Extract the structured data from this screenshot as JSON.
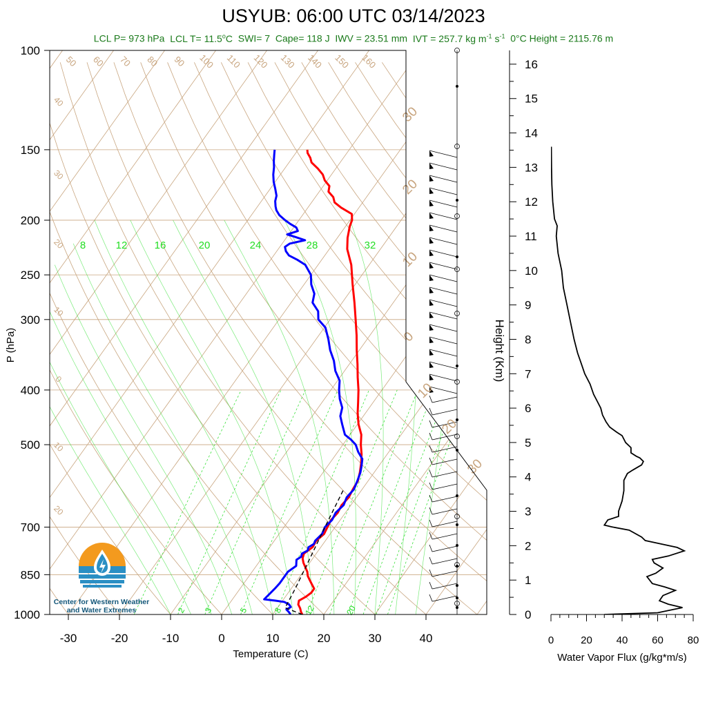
{
  "title": "USYUB: 06:00 UTC 03/14/2023",
  "subtitle": {
    "lcl_p": "LCL P= 973 hPa",
    "lcl_t_pre": "LCL T= 11.5",
    "lcl_t_unit": "C",
    "swi": "SWI= 7",
    "cape": "Cape= 118 J",
    "iwv": "IWV = 23.51 mm",
    "ivt_pre": "IVT = 257.7 kg m",
    "ivt_mid": " s",
    "zero_height": "0°C Height = 2115.76 m",
    "sup_deg": "o",
    "sup_m1": "-1",
    "sup_s1": "-1"
  },
  "logo": {
    "line1": "Center for Western Weather",
    "line2": "and Water Extremes"
  },
  "colors": {
    "temperature": "#ff0000",
    "dewpoint": "#0000ff",
    "isotherm": "#c8a57f",
    "mixing_ratio": "#22dd22",
    "subtitle": "#1a7a1a"
  },
  "chart_data": [
    {
      "type": "line",
      "subtype": "skew-t",
      "xlabel": "Temperature (C)",
      "ylabel": "P (hPa)",
      "x_ticks": [
        -30,
        -20,
        -10,
        0,
        10,
        20,
        30,
        40
      ],
      "y_ticks": [
        100,
        150,
        200,
        250,
        300,
        400,
        500,
        700,
        850,
        1000
      ],
      "ylim": [
        1000,
        100
      ],
      "y_scale": "log",
      "isotherm_labels": [
        -40,
        -30,
        -20,
        -10,
        0,
        10,
        20,
        30,
        40,
        50,
        60,
        70,
        80,
        90,
        100,
        110,
        120,
        130,
        140,
        150,
        160
      ],
      "dry_adiabat_labels_left": [
        40,
        30,
        20,
        10,
        0,
        10,
        20
      ],
      "dry_adiabat_labels_right": [
        30,
        20,
        10,
        0,
        10,
        20,
        30
      ],
      "mixing_ratio_labels_top": [
        8,
        12,
        16,
        20,
        24,
        28,
        32
      ],
      "mixing_ratio_labels_bottom": [
        2,
        3,
        5,
        8,
        12,
        20
      ],
      "series": [
        {
          "name": "temperature",
          "points": [
            [
              15.8,
              1000
            ],
            [
              15.2,
              990
            ],
            [
              14.5,
              975
            ],
            [
              13.6,
              960
            ],
            [
              13.2,
              945
            ],
            [
              14.0,
              930
            ],
            [
              14.5,
              915
            ],
            [
              14.5,
              900
            ],
            [
              13.5,
              885
            ],
            [
              12.5,
              870
            ],
            [
              11.5,
              855
            ],
            [
              10.8,
              840
            ],
            [
              9.8,
              825
            ],
            [
              8.8,
              810
            ],
            [
              8.0,
              795
            ],
            [
              7.6,
              780
            ],
            [
              8.4,
              760
            ],
            [
              8.2,
              740
            ],
            [
              8.8,
              720
            ],
            [
              8.5,
              700
            ],
            [
              8.2,
              680
            ],
            [
              8.5,
              660
            ],
            [
              8.2,
              640
            ],
            [
              8.5,
              620
            ],
            [
              8.2,
              600
            ],
            [
              8.0,
              580
            ],
            [
              7.2,
              560
            ],
            [
              6.2,
              540
            ],
            [
              5.0,
              520
            ],
            [
              3.5,
              500
            ],
            [
              2.2,
              480
            ],
            [
              0.2,
              460
            ],
            [
              -1.5,
              440
            ],
            [
              -3.0,
              420
            ],
            [
              -4.6,
              400
            ],
            [
              -6.5,
              380
            ],
            [
              -8.4,
              360
            ],
            [
              -10.5,
              340
            ],
            [
              -12.6,
              320
            ],
            [
              -15.0,
              300
            ],
            [
              -17.6,
              280
            ],
            [
              -20.5,
              260
            ],
            [
              -23.5,
              240
            ],
            [
              -26.5,
              225
            ],
            [
              -28.0,
              215
            ],
            [
              -29.2,
              205
            ],
            [
              -29.6,
              200
            ],
            [
              -30.5,
              195
            ],
            [
              -33.5,
              190
            ],
            [
              -35.5,
              186
            ],
            [
              -36.5,
              182
            ],
            [
              -38.2,
              178
            ],
            [
              -38.8,
              174
            ],
            [
              -40.5,
              170
            ],
            [
              -41.7,
              166
            ],
            [
              -43.5,
              162
            ],
            [
              -45.6,
              158
            ],
            [
              -46.5,
              155
            ],
            [
              -47.7,
              152
            ],
            [
              -48.2,
              150
            ]
          ]
        },
        {
          "name": "dewpoint",
          "points": [
            [
              13.5,
              1000
            ],
            [
              12.8,
              990
            ],
            [
              12.0,
              980
            ],
            [
              12.5,
              970
            ],
            [
              11.8,
              960
            ],
            [
              10.5,
              950
            ],
            [
              8.5,
              945
            ],
            [
              6.2,
              940
            ],
            [
              6.5,
              920
            ],
            [
              6.8,
              900
            ],
            [
              7.0,
              880
            ],
            [
              7.0,
              860
            ],
            [
              7.0,
              840
            ],
            [
              7.8,
              820
            ],
            [
              7.0,
              800
            ],
            [
              7.5,
              790
            ],
            [
              7.2,
              780
            ],
            [
              7.9,
              770
            ],
            [
              7.6,
              760
            ],
            [
              8.2,
              750
            ],
            [
              8.0,
              740
            ],
            [
              8.4,
              720
            ],
            [
              8.0,
              700
            ],
            [
              8.4,
              680
            ],
            [
              8.1,
              660
            ],
            [
              8.6,
              640
            ],
            [
              8.1,
              620
            ],
            [
              8.4,
              600
            ],
            [
              7.9,
              580
            ],
            [
              7.3,
              560
            ],
            [
              6.6,
              545
            ],
            [
              5.8,
              530
            ],
            [
              4.0,
              515
            ],
            [
              2.5,
              500
            ],
            [
              0.9,
              490
            ],
            [
              -1.0,
              480
            ],
            [
              -2.0,
              470
            ],
            [
              -3.0,
              460
            ],
            [
              -4.5,
              445
            ],
            [
              -5.3,
              430
            ],
            [
              -7.0,
              415
            ],
            [
              -8.4,
              400
            ],
            [
              -9.6,
              385
            ],
            [
              -11.8,
              370
            ],
            [
              -13.5,
              355
            ],
            [
              -15.7,
              340
            ],
            [
              -17.6,
              325
            ],
            [
              -19.8,
              310
            ],
            [
              -22.3,
              300
            ],
            [
              -23.5,
              290
            ],
            [
              -25.8,
              280
            ],
            [
              -26.7,
              270
            ],
            [
              -28.6,
              260
            ],
            [
              -30.0,
              250
            ],
            [
              -32.5,
              240
            ],
            [
              -34.8,
              235
            ],
            [
              -37.0,
              231
            ],
            [
              -38.2,
              227
            ],
            [
              -39.0,
              223
            ],
            [
              -38.5,
              220
            ],
            [
              -36.0,
              217
            ],
            [
              -38.5,
              214
            ],
            [
              -40.3,
              212
            ],
            [
              -38.7,
              209
            ],
            [
              -39.5,
              206
            ],
            [
              -41.2,
              203
            ],
            [
              -42.7,
              200
            ],
            [
              -44.5,
              196
            ],
            [
              -45.8,
              192
            ],
            [
              -46.5,
              189
            ],
            [
              -47.3,
              185
            ],
            [
              -47.8,
              181
            ],
            [
              -49.0,
              176
            ],
            [
              -50.3,
              171
            ],
            [
              -51.4,
              166
            ],
            [
              -52.3,
              161
            ],
            [
              -53.2,
              157
            ],
            [
              -54.0,
              153
            ],
            [
              -54.6,
              150
            ]
          ]
        },
        {
          "name": "parcel",
          "points": [
            [
              15.8,
              1000
            ],
            [
              11.5,
              973
            ],
            [
              10.8,
              900
            ],
            [
              9.5,
              800
            ],
            [
              8.0,
              700
            ],
            [
              6.4,
              600
            ]
          ]
        }
      ]
    },
    {
      "type": "line",
      "xlabel": "Water Vapor Flux (g/kg*m/s)",
      "ylabel": "Height (Km)",
      "x_ticks": [
        0,
        20,
        40,
        60,
        80
      ],
      "y_ticks": [
        0,
        1,
        2,
        3,
        4,
        5,
        6,
        7,
        8,
        9,
        10,
        11,
        12,
        13,
        14,
        15,
        16
      ],
      "xlim": [
        0,
        80
      ],
      "ylim": [
        0,
        16.4
      ],
      "series": [
        {
          "name": "water_vapor_flux",
          "points": [
            [
              30,
              0.0
            ],
            [
              60,
              0.05
            ],
            [
              74,
              0.2
            ],
            [
              66,
              0.3
            ],
            [
              61,
              0.4
            ],
            [
              63,
              0.55
            ],
            [
              70,
              0.7
            ],
            [
              64,
              0.8
            ],
            [
              57,
              0.9
            ],
            [
              54,
              1.1
            ],
            [
              59,
              1.2
            ],
            [
              63,
              1.35
            ],
            [
              58,
              1.5
            ],
            [
              57,
              1.6
            ],
            [
              66,
              1.7
            ],
            [
              75,
              1.85
            ],
            [
              71,
              1.95
            ],
            [
              62,
              2.05
            ],
            [
              53,
              2.15
            ],
            [
              51,
              2.25
            ],
            [
              44,
              2.45
            ],
            [
              34,
              2.55
            ],
            [
              30,
              2.6
            ],
            [
              32,
              2.75
            ],
            [
              38,
              2.85
            ],
            [
              38,
              3.0
            ],
            [
              40,
              3.3
            ],
            [
              41,
              3.6
            ],
            [
              41,
              3.9
            ],
            [
              43,
              4.1
            ],
            [
              46,
              4.2
            ],
            [
              51,
              4.35
            ],
            [
              52,
              4.45
            ],
            [
              50,
              4.55
            ],
            [
              48,
              4.6
            ],
            [
              45,
              4.7
            ],
            [
              45,
              4.85
            ],
            [
              42,
              5.0
            ],
            [
              40,
              5.2
            ],
            [
              37,
              5.3
            ],
            [
              33,
              5.45
            ],
            [
              31,
              5.6
            ],
            [
              29,
              5.8
            ],
            [
              28,
              6.0
            ],
            [
              26,
              6.2
            ],
            [
              24,
              6.4
            ],
            [
              22,
              6.7
            ],
            [
              19,
              7.0
            ],
            [
              17,
              7.3
            ],
            [
              15,
              7.6
            ],
            [
              13,
              8.0
            ],
            [
              11,
              8.5
            ],
            [
              9,
              9.0
            ],
            [
              7,
              9.5
            ],
            [
              6,
              10.0
            ],
            [
              4,
              10.5
            ],
            [
              3,
              11.0
            ],
            [
              3.5,
              11.3
            ],
            [
              2,
              11.5
            ],
            [
              1,
              12.0
            ],
            [
              0.5,
              12.5
            ],
            [
              0.3,
              13.0
            ],
            [
              0.2,
              13.6
            ]
          ]
        }
      ]
    }
  ]
}
